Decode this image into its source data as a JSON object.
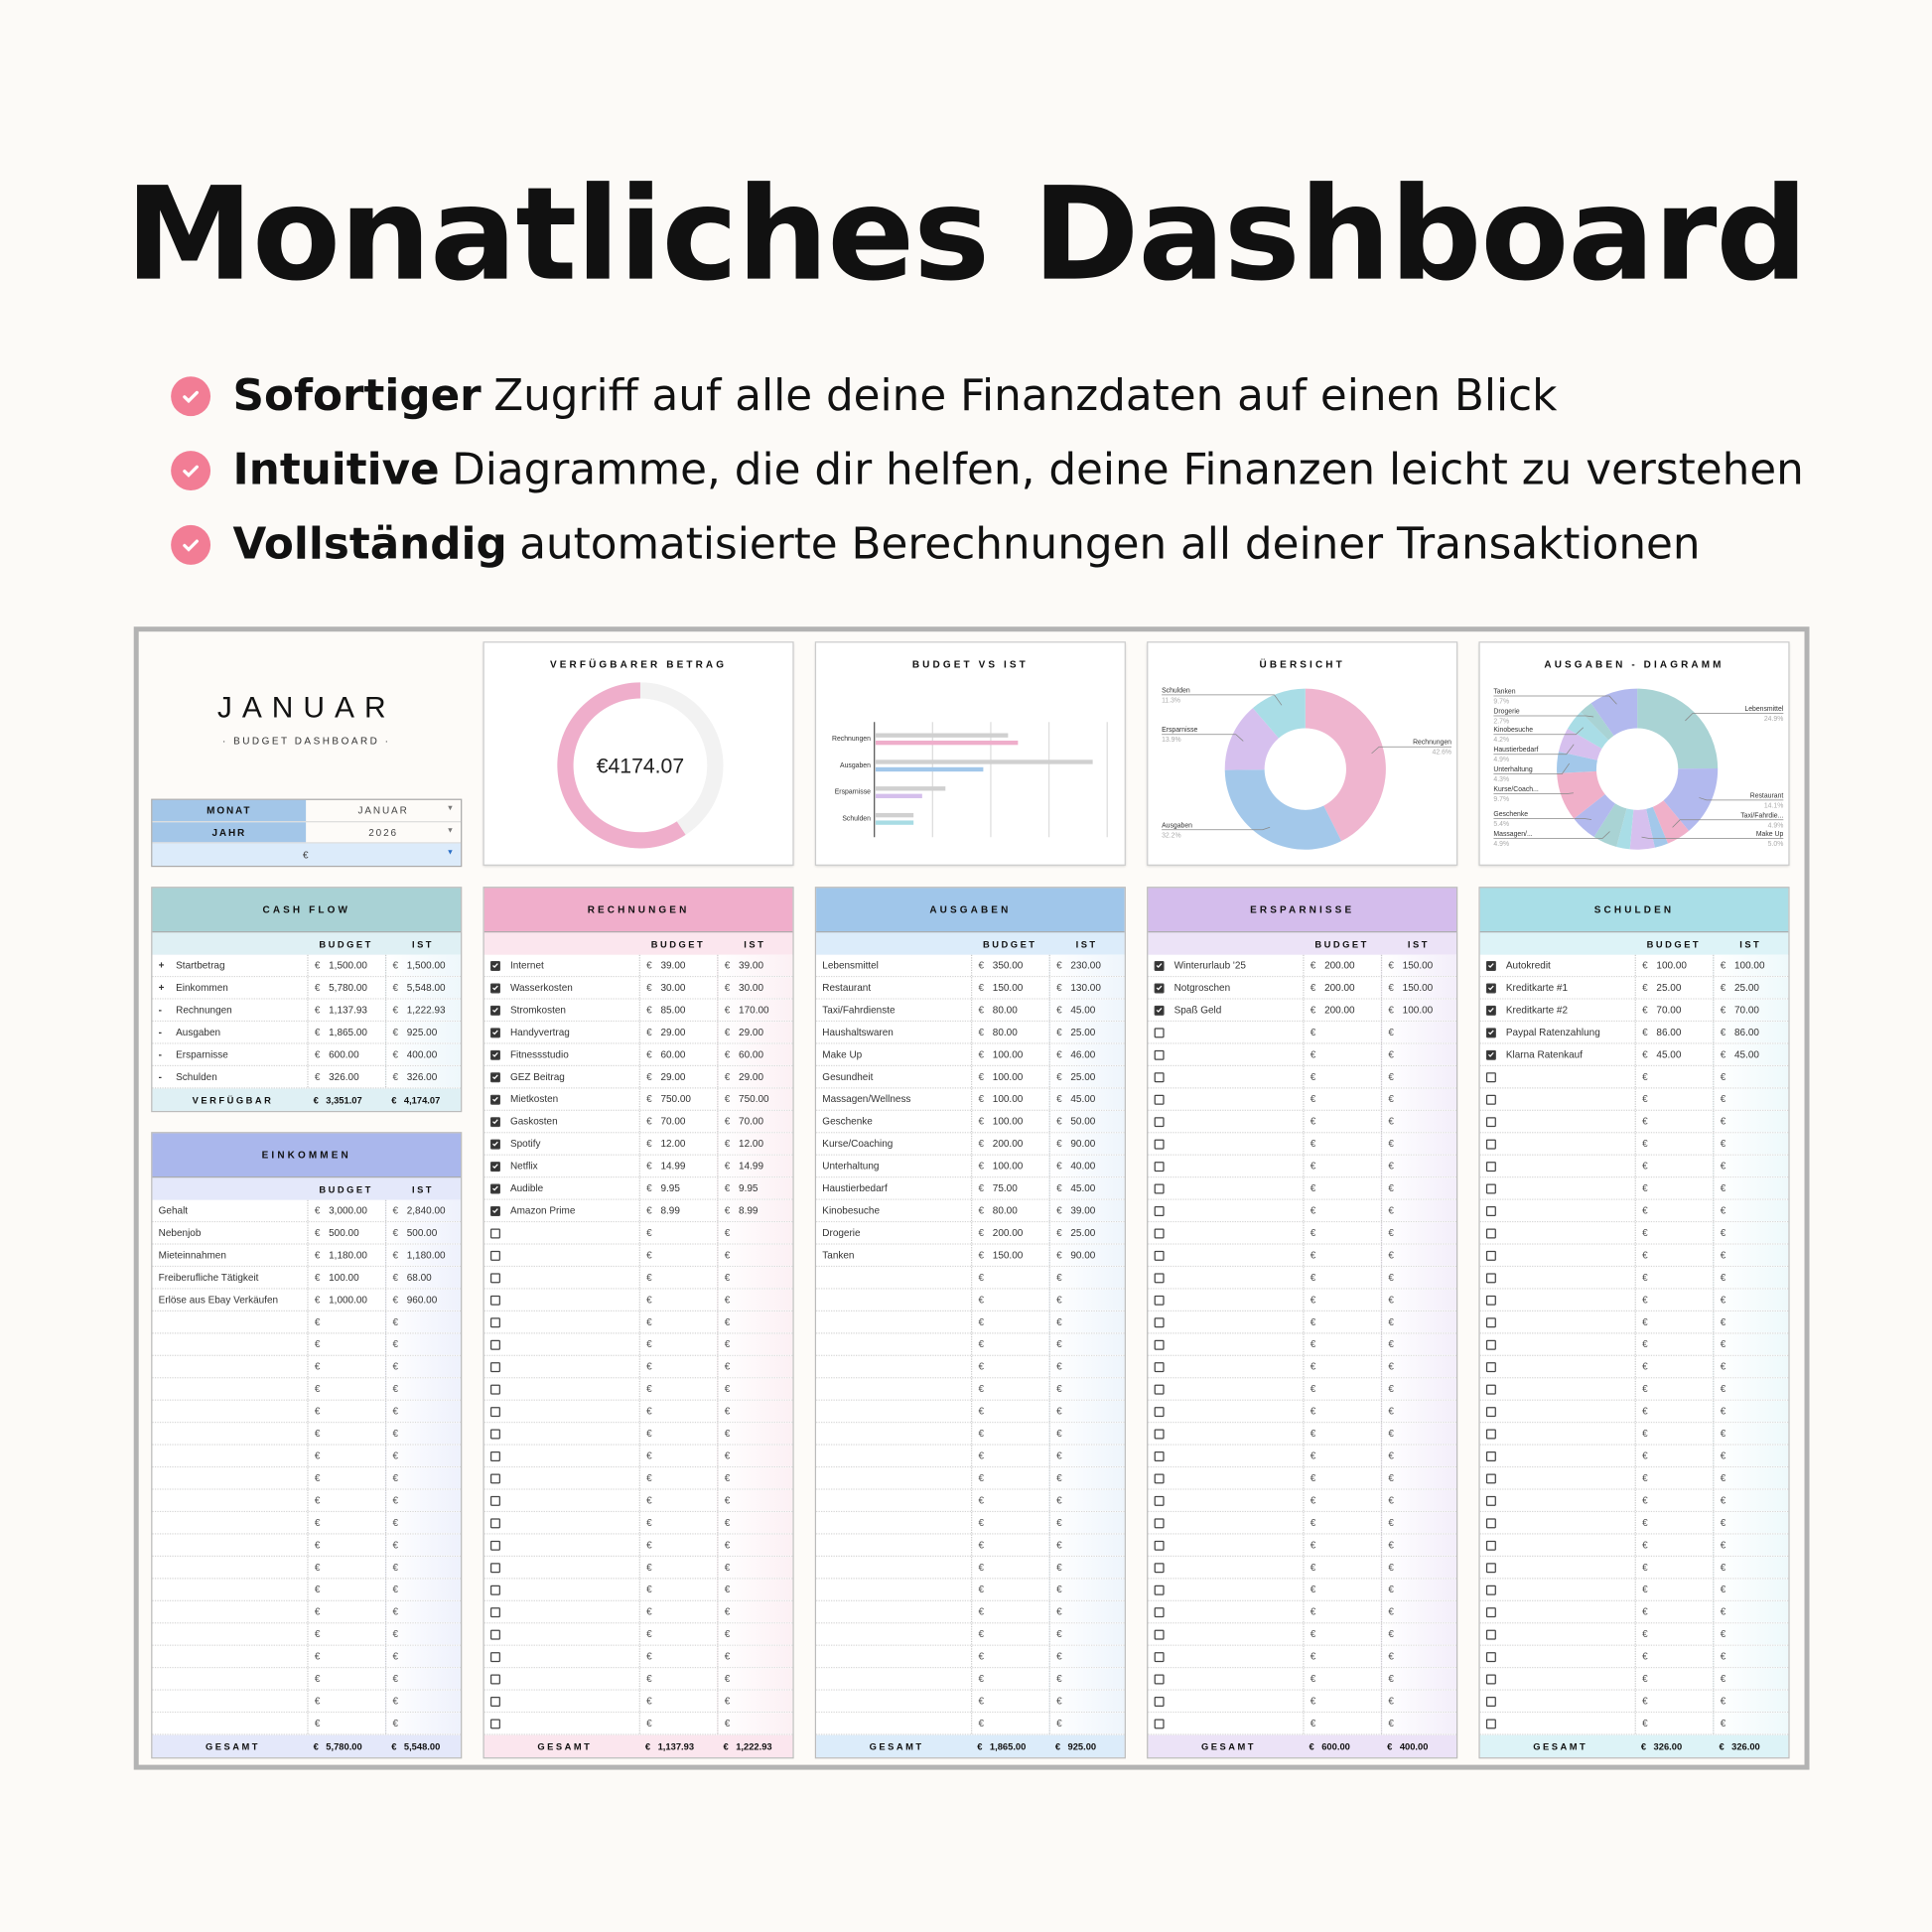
{
  "title": "Monatliches Dashboard",
  "bullets": [
    {
      "bold": "Sofortiger",
      "text": "Zugriff auf alle deine Finanzdaten auf einen Blick"
    },
    {
      "bold": "Intuitive",
      "text": "Diagramme, die dir helfen, deine Finanzen leicht zu verstehen"
    },
    {
      "bold": "Vollständig",
      "text": "automatisierte Berechnungen all deiner Transaktionen"
    }
  ],
  "header": {
    "month_title": "JANUAR",
    "subtitle": "· BUDGET DASHBOARD ·",
    "monat_label": "MONAT",
    "monat_value": "JANUAR",
    "jahr_label": "JAHR",
    "jahr_value": "2026",
    "currency_value": "€"
  },
  "colors": {
    "pink": "#efaecb",
    "blue": "#a2c7ea",
    "purple": "#d5bfec",
    "teal": "#a8dce4",
    "gray": "#d0d0d0",
    "check": "#f27d95"
  },
  "chart_data": [
    {
      "type": "pie",
      "title": "VERFÜGBARER BETRAG",
      "center_label": "€4174.07",
      "fraction": 0.592
    },
    {
      "type": "bar",
      "title": "BUDGET VS IST",
      "categories": [
        "Rechnungen",
        "Ausgaben",
        "Ersparnisse",
        "Schulden"
      ],
      "series": [
        {
          "name": "Budget",
          "values": [
            1137.93,
            1865,
            600,
            326
          ]
        },
        {
          "name": "Ist",
          "values": [
            1222.93,
            925,
            400,
            326
          ]
        }
      ],
      "xlim": [
        0,
        2000
      ],
      "grid_step": 500
    },
    {
      "type": "pie",
      "title": "ÜBERSICHT",
      "slices": [
        {
          "label": "Rechnungen",
          "pct": "42.6%",
          "value": 42.6,
          "color": "#efb5cf",
          "side": "right"
        },
        {
          "label": "Ausgaben",
          "pct": "32.2%",
          "value": 32.2,
          "color": "#a3c8ea",
          "side": "left"
        },
        {
          "label": "Ersparnisse",
          "pct": "13.9%",
          "value": 13.9,
          "color": "#d6c0ee",
          "side": "left"
        },
        {
          "label": "Schulden",
          "pct": "11.3%",
          "value": 11.3,
          "color": "#a9dde6",
          "side": "left"
        }
      ]
    },
    {
      "type": "pie",
      "title": "AUSGABEN - DIAGRAMM",
      "slices": [
        {
          "label": "Lebensmittel",
          "pct": "24.9%",
          "value": 230,
          "side": "right"
        },
        {
          "label": "Restaurant",
          "pct": "14.1%",
          "value": 130,
          "side": "right"
        },
        {
          "label": "Taxi/Fahrdie...",
          "pct": "4.9%",
          "value": 45,
          "side": "right"
        },
        {
          "label": "Haushaltswaren",
          "pct": "2.7%",
          "value": 25
        },
        {
          "label": "Make Up",
          "pct": "5.0%",
          "value": 46,
          "side": "right"
        },
        {
          "label": "Gesundheit",
          "pct": "2.7%",
          "value": 25
        },
        {
          "label": "Massagen/...",
          "pct": "4.9%",
          "value": 45,
          "side": "left"
        },
        {
          "label": "Geschenke",
          "pct": "5.4%",
          "value": 50,
          "side": "left"
        },
        {
          "label": "Kurse/Coach...",
          "pct": "9.7%",
          "value": 90,
          "side": "left"
        },
        {
          "label": "Unterhaltung",
          "pct": "4.3%",
          "value": 40,
          "side": "left"
        },
        {
          "label": "Haustierbedarf",
          "pct": "4.9%",
          "value": 45,
          "side": "left"
        },
        {
          "label": "Kinobesuche",
          "pct": "4.2%",
          "value": 39,
          "side": "left"
        },
        {
          "label": "Drogerie",
          "pct": "2.7%",
          "value": 25,
          "side": "left"
        },
        {
          "label": "Tanken",
          "pct": "9.7%",
          "value": 90,
          "side": "left"
        }
      ]
    }
  ],
  "tables": {
    "cashflow": {
      "title": "CASH FLOW",
      "col_budget": "BUDGET",
      "col_ist": "IST",
      "currency": "€",
      "header_color": "#a9d2d5",
      "sub_color": "#dff0f4",
      "row_tint": "#eef7fb",
      "row_count": 6,
      "rows": [
        {
          "prefix": "+",
          "label": "Startbetrag",
          "budget": "1,500.00",
          "ist": "1,500.00"
        },
        {
          "prefix": "+",
          "label": "Einkommen",
          "budget": "5,780.00",
          "ist": "5,548.00"
        },
        {
          "prefix": "-",
          "label": "Rechnungen",
          "budget": "1,137.93",
          "ist": "1,222.93"
        },
        {
          "prefix": "-",
          "label": "Ausgaben",
          "budget": "1,865.00",
          "ist": "925.00"
        },
        {
          "prefix": "-",
          "label": "Ersparnisse",
          "budget": "600.00",
          "ist": "400.00"
        },
        {
          "prefix": "-",
          "label": "Schulden",
          "budget": "326.00",
          "ist": "326.00"
        }
      ],
      "total_label": "VERFÜGBAR",
      "total_budget": "3,351.07",
      "total_ist": "4,174.07"
    },
    "einkommen": {
      "title": "EINKOMMEN",
      "col_budget": "BUDGET",
      "col_ist": "IST",
      "currency": "€",
      "header_color": "#aab7ec",
      "sub_color": "#e4e8fa",
      "row_tint": "#eef1fc",
      "row_count": 24,
      "rows": [
        {
          "label": "Gehalt",
          "budget": "3,000.00",
          "ist": "2,840.00"
        },
        {
          "label": "Nebenjob",
          "budget": "500.00",
          "ist": "500.00"
        },
        {
          "label": "Mieteinnahmen",
          "budget": "1,180.00",
          "ist": "1,180.00"
        },
        {
          "label": "Freiberufliche Tätigkeit",
          "budget": "100.00",
          "ist": "68.00"
        },
        {
          "label": "Erlöse aus Ebay Verkäufen",
          "budget": "1,000.00",
          "ist": "960.00"
        }
      ],
      "total_label": "GESAMT",
      "total_budget": "5,780.00",
      "total_ist": "5,548.00"
    },
    "rechnungen": {
      "title": "RECHNUNGEN",
      "col_budget": "BUDGET",
      "col_ist": "IST",
      "currency": "€",
      "checkbox": true,
      "header_color": "#f0aecb",
      "sub_color": "#fbe6ee",
      "row_tint": "#fcf0f4",
      "row_count": 35,
      "rows": [
        {
          "label": "Internet",
          "budget": "39.00",
          "ist": "39.00",
          "checked": true
        },
        {
          "label": "Wasserkosten",
          "budget": "30.00",
          "ist": "30.00",
          "checked": true
        },
        {
          "label": "Stromkosten",
          "budget": "85.00",
          "ist": "170.00",
          "checked": true
        },
        {
          "label": "Handyvertrag",
          "budget": "29.00",
          "ist": "29.00",
          "checked": true
        },
        {
          "label": "Fitnessstudio",
          "budget": "60.00",
          "ist": "60.00",
          "checked": true
        },
        {
          "label": "GEZ Beitrag",
          "budget": "29.00",
          "ist": "29.00",
          "checked": true
        },
        {
          "label": "Mietkosten",
          "budget": "750.00",
          "ist": "750.00",
          "checked": true
        },
        {
          "label": "Gaskosten",
          "budget": "70.00",
          "ist": "70.00",
          "checked": true
        },
        {
          "label": "Spotify",
          "budget": "12.00",
          "ist": "12.00",
          "checked": true
        },
        {
          "label": "Netflix",
          "budget": "14.99",
          "ist": "14.99",
          "checked": true
        },
        {
          "label": "Audible",
          "budget": "9.95",
          "ist": "9.95",
          "checked": true
        },
        {
          "label": "Amazon Prime",
          "budget": "8.99",
          "ist": "8.99",
          "checked": true
        }
      ],
      "total_label": "GESAMT",
      "total_budget": "1,137.93",
      "total_ist": "1,222.93"
    },
    "ausgaben": {
      "title": "AUSGABEN",
      "col_budget": "BUDGET",
      "col_ist": "IST",
      "currency": "€",
      "header_color": "#a0c6ea",
      "sub_color": "#dcecfa",
      "row_tint": "#eef5fc",
      "row_count": 35,
      "rows": [
        {
          "label": "Lebensmittel",
          "budget": "350.00",
          "ist": "230.00"
        },
        {
          "label": "Restaurant",
          "budget": "150.00",
          "ist": "130.00"
        },
        {
          "label": "Taxi/Fahrdienste",
          "budget": "80.00",
          "ist": "45.00"
        },
        {
          "label": "Haushaltswaren",
          "budget": "80.00",
          "ist": "25.00"
        },
        {
          "label": "Make Up",
          "budget": "100.00",
          "ist": "46.00"
        },
        {
          "label": "Gesundheit",
          "budget": "100.00",
          "ist": "25.00"
        },
        {
          "label": "Massagen/Wellness",
          "budget": "100.00",
          "ist": "45.00"
        },
        {
          "label": "Geschenke",
          "budget": "100.00",
          "ist": "50.00"
        },
        {
          "label": "Kurse/Coaching",
          "budget": "200.00",
          "ist": "90.00"
        },
        {
          "label": "Unterhaltung",
          "budget": "100.00",
          "ist": "40.00"
        },
        {
          "label": "Haustierbedarf",
          "budget": "75.00",
          "ist": "45.00"
        },
        {
          "label": "Kinobesuche",
          "budget": "80.00",
          "ist": "39.00"
        },
        {
          "label": "Drogerie",
          "budget": "200.00",
          "ist": "25.00"
        },
        {
          "label": "Tanken",
          "budget": "150.00",
          "ist": "90.00"
        }
      ],
      "total_label": "GESAMT",
      "total_budget": "1,865.00",
      "total_ist": "925.00"
    },
    "ersparnisse": {
      "title": "ERSPARNISSE",
      "col_budget": "BUDGET",
      "col_ist": "IST",
      "currency": "€",
      "checkbox": true,
      "header_color": "#d4bdec",
      "sub_color": "#ece3f7",
      "row_tint": "#f3eefa",
      "row_count": 35,
      "rows": [
        {
          "label": "Winterurlaub '25",
          "budget": "200.00",
          "ist": "150.00",
          "checked": true
        },
        {
          "label": "Notgroschen",
          "budget": "200.00",
          "ist": "150.00",
          "checked": true
        },
        {
          "label": "Spaß Geld",
          "budget": "200.00",
          "ist": "100.00",
          "checked": true
        }
      ],
      "total_label": "GESAMT",
      "total_budget": "600.00",
      "total_ist": "400.00"
    },
    "schulden": {
      "title": "SCHULDEN",
      "col_budget": "BUDGET",
      "col_ist": "IST",
      "currency": "€",
      "checkbox": true,
      "header_color": "#a9dee7",
      "sub_color": "#ddf3f7",
      "row_tint": "#eef9fb",
      "row_count": 35,
      "rows": [
        {
          "label": "Autokredit",
          "budget": "100.00",
          "ist": "100.00",
          "checked": true
        },
        {
          "label": "Kreditkarte #1",
          "budget": "25.00",
          "ist": "25.00",
          "checked": true
        },
        {
          "label": "Kreditkarte #2",
          "budget": "70.00",
          "ist": "70.00",
          "checked": true
        },
        {
          "label": "Paypal Ratenzahlung",
          "budget": "86.00",
          "ist": "86.00",
          "checked": true
        },
        {
          "label": "Klarna Ratenkauf",
          "budget": "45.00",
          "ist": "45.00",
          "checked": true
        }
      ],
      "total_label": "GESAMT",
      "total_budget": "326.00",
      "total_ist": "326.00"
    }
  }
}
